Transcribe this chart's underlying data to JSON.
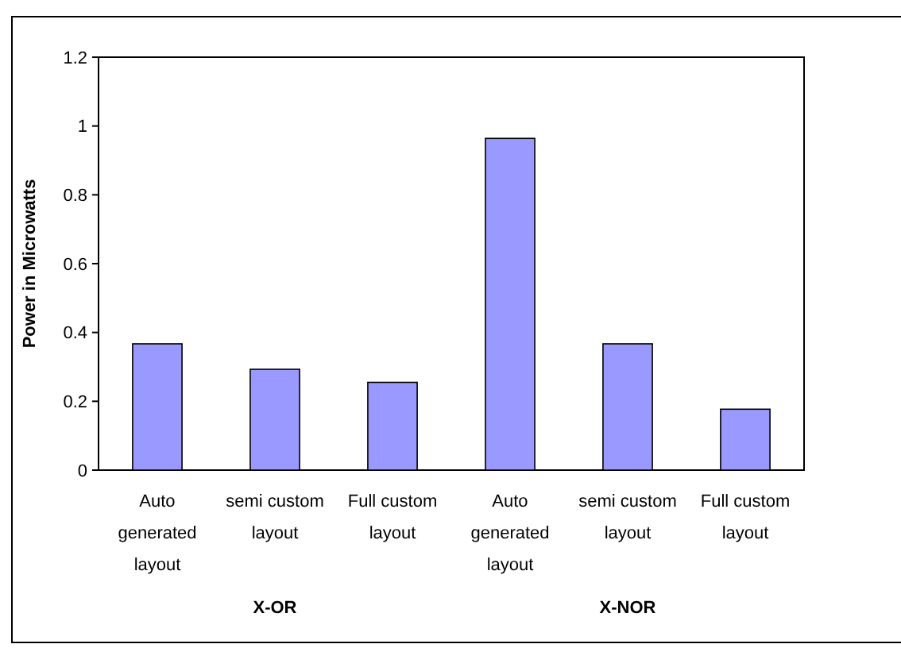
{
  "chart_data": {
    "type": "bar",
    "ylabel": "Power in Microwatts",
    "categories": [
      "Auto generated layout",
      "semi custom layout",
      "Full custom layout",
      "Auto generated layout",
      "semi custom layout",
      "Full custom layout"
    ],
    "values": [
      0.367,
      0.293,
      0.255,
      0.964,
      0.367,
      0.177
    ],
    "color": "#9999ff",
    "ylim": [
      0,
      1.2
    ],
    "yticks": [
      0,
      0.2,
      0.4,
      0.6,
      0.8,
      1,
      1.2
    ],
    "annotations": [
      "X-OR",
      "X-NOR"
    ],
    "grid": false
  }
}
